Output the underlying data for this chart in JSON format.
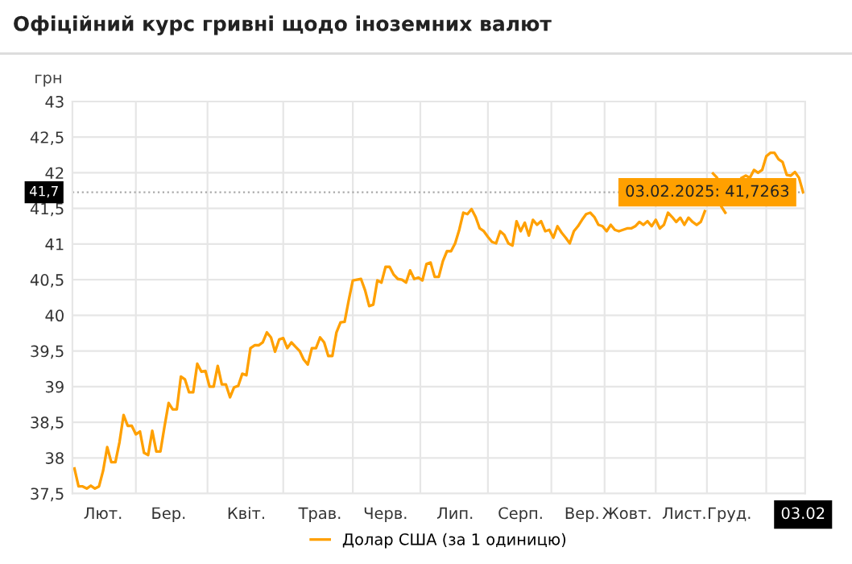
{
  "chart_data": {
    "type": "line",
    "title": "Офіційний курс гривні щодо іноземних валют",
    "ylabel": "грн",
    "categories": [
      null,
      null,
      null,
      null,
      null,
      null,
      null,
      "Лют.",
      null,
      null,
      null,
      null,
      null,
      null,
      null,
      null,
      null,
      null,
      null,
      null,
      null,
      null,
      null,
      "Бер.",
      null,
      null,
      null,
      null,
      null,
      null,
      null,
      null,
      null,
      null,
      null,
      null,
      null,
      null,
      null,
      null,
      null,
      null,
      "Квіт.",
      null,
      null,
      null,
      null,
      null,
      null,
      null,
      null,
      null,
      null,
      null,
      null,
      null,
      null,
      null,
      null,
      null,
      "Трав.",
      null,
      null,
      null,
      null,
      null,
      null,
      null,
      null,
      null,
      null,
      null,
      null,
      null,
      null,
      null,
      "Черв.",
      null,
      null,
      null,
      null,
      null,
      null,
      null,
      null,
      null,
      null,
      null,
      null,
      null,
      null,
      null,
      null,
      "Лип.",
      null,
      null,
      null,
      null,
      null,
      null,
      null,
      null,
      null,
      null,
      null,
      null,
      null,
      null,
      null,
      "Серп.",
      null,
      null,
      null,
      null,
      null,
      null,
      null,
      null,
      null,
      null,
      null,
      null,
      null,
      null,
      "Вер.",
      null,
      null,
      null,
      null,
      null,
      null,
      null,
      null,
      null,
      null,
      "Жовт.",
      null,
      null,
      null,
      null,
      null,
      null,
      null,
      null,
      null,
      null,
      null,
      null,
      null,
      "Лист.",
      null,
      null,
      null,
      null,
      null,
      null,
      null,
      null,
      null,
      null,
      "Груд.",
      null,
      null,
      null,
      null,
      null,
      null,
      null,
      null,
      null,
      null,
      null,
      null,
      null,
      null,
      null,
      null,
      null,
      "03.02"
    ],
    "series": [
      {
        "name": "Долар США (за 1 одиницю)",
        "color": "#ffa000",
        "values": [
          37.85,
          37.6,
          37.6,
          37.57,
          37.61,
          37.57,
          37.6,
          37.82,
          38.15,
          37.94,
          37.94,
          38.22,
          38.6,
          38.45,
          38.45,
          38.33,
          38.37,
          38.07,
          38.04,
          38.38,
          38.09,
          38.09,
          38.44,
          38.77,
          38.68,
          38.68,
          39.14,
          39.1,
          38.92,
          38.92,
          39.32,
          39.21,
          39.22,
          39.0,
          39.0,
          39.29,
          39.03,
          39.03,
          38.85,
          38.99,
          39.01,
          39.18,
          39.16,
          39.54,
          39.58,
          39.58,
          39.62,
          39.76,
          39.69,
          39.49,
          39.66,
          39.68,
          39.54,
          39.62,
          39.56,
          39.5,
          39.38,
          39.31,
          39.54,
          39.54,
          39.69,
          39.62,
          39.43,
          39.43,
          39.76,
          39.9,
          39.91,
          40.21,
          40.49,
          40.5,
          40.51,
          40.35,
          40.13,
          40.15,
          40.49,
          40.46,
          40.68,
          40.68,
          40.57,
          40.51,
          40.5,
          40.46,
          40.63,
          40.51,
          40.53,
          40.49,
          40.72,
          40.74,
          40.54,
          40.54,
          40.76,
          40.9,
          40.9,
          41.01,
          41.2,
          41.44,
          41.42,
          41.49,
          41.38,
          41.22,
          41.18,
          41.1,
          41.03,
          41.01,
          41.18,
          41.13,
          41.01,
          40.98,
          41.32,
          41.18,
          41.3,
          41.12,
          41.34,
          41.27,
          41.32,
          41.18,
          41.2,
          41.09,
          41.25,
          41.16,
          41.09,
          41.01,
          41.18,
          41.25,
          41.34,
          41.42,
          41.44,
          41.38,
          41.27,
          41.25,
          41.18,
          41.27,
          41.2,
          41.18,
          41.2,
          41.22,
          41.22,
          41.25,
          41.31,
          41.27,
          41.32,
          41.25,
          41.34,
          41.22,
          41.27,
          41.44,
          41.38,
          41.31,
          41.37,
          41.27,
          41.37,
          41.31,
          41.27,
          41.31,
          41.46,
          null,
          41.99,
          41.93,
          41.53,
          41.44,
          null,
          null,
          null,
          41.93,
          41.96,
          41.93,
          42.04,
          42.0,
          42.04,
          42.23,
          42.28,
          42.28,
          42.19,
          42.15,
          41.97,
          41.96,
          42.01,
          41.93,
          41.7263
        ]
      }
    ],
    "ylim": [
      37.5,
      43
    ],
    "yticks": [
      {
        "value": 37.5,
        "label": "37,5"
      },
      38,
      {
        "value": 38.5,
        "label": "38,5"
      },
      39,
      {
        "value": 39.5,
        "label": "39,5"
      },
      40,
      {
        "value": 40.5,
        "label": "40,5"
      },
      41,
      {
        "value": 41.5,
        "label": "41,5"
      },
      42,
      {
        "value": 42.5,
        "label": "42,5"
      },
      43
    ],
    "ref_lines": [
      {
        "axis": "y",
        "value": 41.7263,
        "label": "41,7",
        "color": "#aaaaaa",
        "line_style": "dotted"
      }
    ],
    "annotations": [
      {
        "text": "03.02.2025: 41,7263",
        "x": "03.02",
        "y": 41.7263
      }
    ],
    "grid": true,
    "legend": "bottom",
    "marker": "none",
    "line_style": "solid"
  }
}
